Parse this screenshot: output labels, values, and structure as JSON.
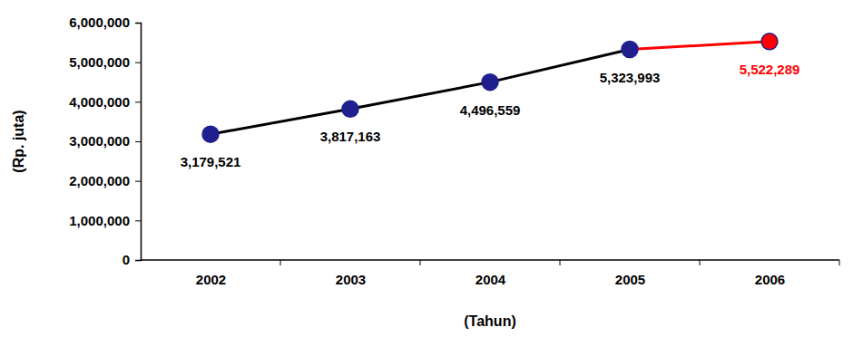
{
  "chart_data": {
    "type": "line",
    "categories": [
      "2002",
      "2003",
      "2004",
      "2005",
      "2006"
    ],
    "values": [
      3179521,
      3817163,
      4496559,
      5323993,
      5522289
    ],
    "value_labels": [
      "3,179,521",
      "3,817,163",
      "4,496,559",
      "5,323,993",
      "5,522,289"
    ],
    "data_labels": true,
    "color": "#000000",
    "colors": [
      "#1f1f8f",
      "#1f1f8f",
      "#1f1f8f",
      "#1f1f8f",
      "#ff0000"
    ],
    "marker": "circle",
    "x_label": "(Tahun)",
    "y_label": "(Rp. juta)",
    "ylim": [
      0,
      6000000
    ],
    "yticks": [
      0,
      {
        "value": 1000000,
        "label": "1,000,000"
      },
      {
        "value": 2000000,
        "label": "2,000,000"
      },
      {
        "value": 3000000,
        "label": "3,000,000"
      },
      {
        "value": 4000000,
        "label": "4,000,000"
      },
      {
        "value": 5000000,
        "label": "5,000,000"
      },
      {
        "value": 6000000,
        "label": "6,000,000"
      }
    ],
    "grid": false
  }
}
